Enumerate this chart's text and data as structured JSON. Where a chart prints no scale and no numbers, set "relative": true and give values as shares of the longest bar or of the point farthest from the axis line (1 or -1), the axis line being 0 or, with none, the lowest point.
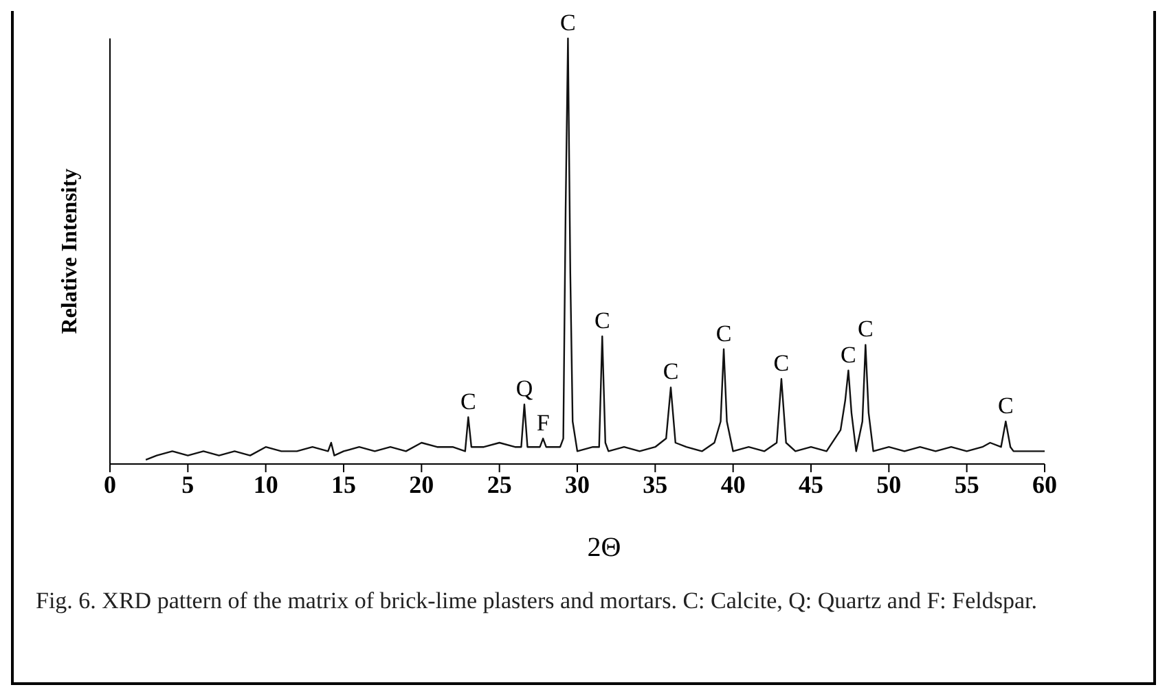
{
  "chart_data": {
    "type": "line",
    "relative": true,
    "ylabel": "Relative Intensity",
    "xlabel": "2Θ",
    "xlim": [
      0,
      60
    ],
    "xticks": [
      0,
      5,
      10,
      15,
      20,
      25,
      30,
      35,
      40,
      45,
      50,
      55,
      60
    ],
    "tick_labels": "x",
    "grid": false,
    "legend": false,
    "marker": "none",
    "line_style": "solid",
    "x": [
      2.3,
      3,
      4,
      5,
      6,
      7,
      8,
      9,
      10,
      11,
      12,
      13,
      14,
      14.2,
      14.4,
      15,
      16,
      17,
      18,
      19,
      20,
      21,
      22,
      22.8,
      23.0,
      23.2,
      24,
      25,
      26,
      26.4,
      26.6,
      26.8,
      27.6,
      27.8,
      28,
      28.9,
      29.1,
      29.25,
      29.4,
      29.55,
      29.7,
      30,
      31,
      31.4,
      31.6,
      31.8,
      32,
      33,
      34,
      35,
      35.7,
      36.0,
      36.3,
      37,
      38,
      38.8,
      39.2,
      39.4,
      39.6,
      40,
      41,
      42,
      42.8,
      43.1,
      43.4,
      44,
      45,
      46,
      46.9,
      47.2,
      47.4,
      47.6,
      47.9,
      48.3,
      48.5,
      48.7,
      49,
      50,
      51,
      52,
      53,
      54,
      55,
      56,
      56.5,
      57.2,
      57.5,
      57.8,
      58,
      59,
      60
    ],
    "series": [
      {
        "color": "#111111",
        "values": [
          0.01,
          0.02,
          0.03,
          0.02,
          0.03,
          0.02,
          0.03,
          0.02,
          0.04,
          0.03,
          0.03,
          0.04,
          0.03,
          0.05,
          0.02,
          0.03,
          0.04,
          0.03,
          0.04,
          0.03,
          0.05,
          0.04,
          0.04,
          0.03,
          0.11,
          0.04,
          0.04,
          0.05,
          0.04,
          0.04,
          0.14,
          0.04,
          0.04,
          0.06,
          0.04,
          0.04,
          0.06,
          0.6,
          1.0,
          0.45,
          0.1,
          0.03,
          0.04,
          0.04,
          0.3,
          0.05,
          0.03,
          0.04,
          0.03,
          0.04,
          0.06,
          0.18,
          0.05,
          0.04,
          0.03,
          0.05,
          0.1,
          0.27,
          0.1,
          0.03,
          0.04,
          0.03,
          0.05,
          0.2,
          0.05,
          0.03,
          0.04,
          0.03,
          0.08,
          0.15,
          0.22,
          0.12,
          0.03,
          0.1,
          0.28,
          0.12,
          0.03,
          0.04,
          0.03,
          0.04,
          0.03,
          0.04,
          0.03,
          0.04,
          0.05,
          0.04,
          0.1,
          0.04,
          0.03,
          0.03,
          0.03
        ]
      }
    ],
    "annotations": [
      {
        "text": "C",
        "x": 23.0,
        "y": 0.11
      },
      {
        "text": "Q",
        "x": 26.6,
        "y": 0.14
      },
      {
        "text": "F",
        "x": 27.8,
        "y": 0.06
      },
      {
        "text": "C",
        "x": 29.4,
        "y": 1.0
      },
      {
        "text": "C",
        "x": 31.6,
        "y": 0.3
      },
      {
        "text": "C",
        "x": 36.0,
        "y": 0.18
      },
      {
        "text": "C",
        "x": 39.4,
        "y": 0.27
      },
      {
        "text": "C",
        "x": 43.1,
        "y": 0.2
      },
      {
        "text": "C",
        "x": 47.4,
        "y": 0.22
      },
      {
        "text": "C",
        "x": 48.5,
        "y": 0.28
      },
      {
        "text": "C",
        "x": 57.5,
        "y": 0.1
      },
      "Fig. 6. XRD pattern of the matrix of brick-lime plasters and mortars. C: Calcite, Q: Quartz and F: Feldspar."
    ]
  }
}
